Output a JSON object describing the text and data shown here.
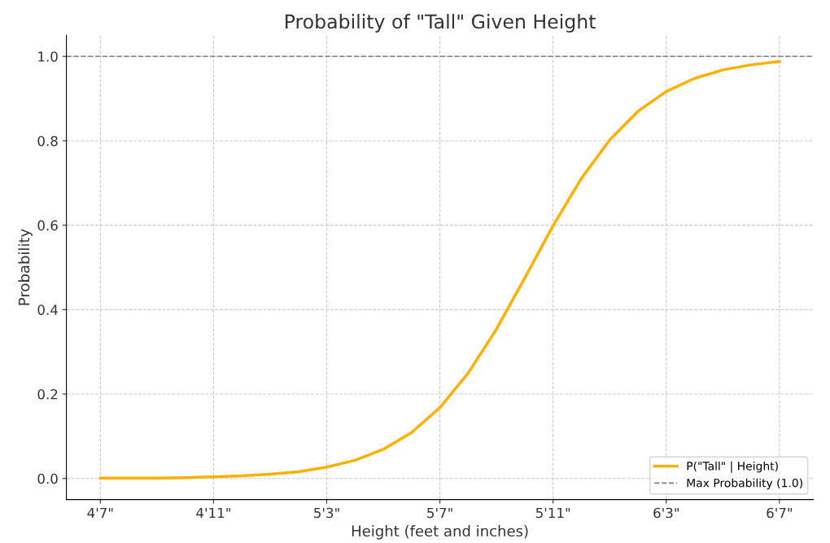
{
  "chart_data": {
    "type": "line",
    "title": "Probability of \"Tall\" Given Height",
    "xlabel": "Height (feet and inches)",
    "ylabel": "Probability",
    "categories": [
      "4'7\"",
      null,
      null,
      null,
      "4'11\"",
      null,
      null,
      null,
      "5'3\"",
      null,
      null,
      null,
      "5'7\"",
      null,
      null,
      null,
      "5'11\"",
      null,
      null,
      null,
      "6'3\"",
      null,
      null,
      null,
      "6'7\""
    ],
    "series": [
      {
        "name": "P(\"Tall\" | Height)",
        "color": "#ffb000",
        "values": [
          0.001,
          0.001,
          0.001,
          0.002,
          0.004,
          0.006,
          0.01,
          0.016,
          0.027,
          0.043,
          0.069,
          0.109,
          0.168,
          0.25,
          0.354,
          0.475,
          0.599,
          0.711,
          0.802,
          0.87,
          0.917,
          0.948,
          0.968,
          0.98,
          0.988
        ]
      }
    ],
    "ref_lines": [
      {
        "axis": "y",
        "value": 1.0,
        "label": "Max Probability (1.0)",
        "color": "#808080",
        "line_style": "dashed"
      }
    ],
    "ylim": [
      -0.05,
      1.05
    ],
    "yticks": [
      {
        "value": 0,
        "label": "0.0"
      },
      {
        "value": 0.2,
        "label": "0.2"
      },
      {
        "value": 0.4,
        "label": "0.4"
      },
      {
        "value": 0.6,
        "label": "0.6"
      },
      {
        "value": 0.8,
        "label": "0.8"
      },
      {
        "value": 1.0,
        "label": "1.0"
      }
    ],
    "grid": true,
    "legend": "bottom right",
    "marker": "none",
    "line_style": "solid"
  }
}
